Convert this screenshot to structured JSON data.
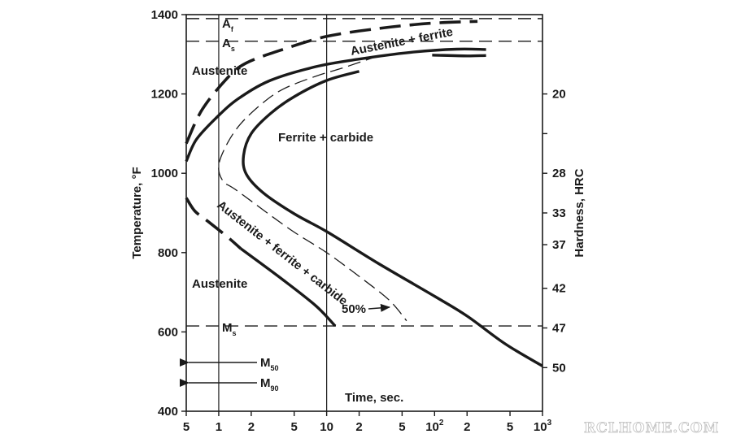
{
  "chart_data": {
    "type": "line",
    "title": "",
    "x_axis": {
      "label": "Time, sec.",
      "scale": "log",
      "range": [
        0.5,
        1000
      ],
      "ticks": [
        {
          "value": 0.5,
          "label": "5"
        },
        {
          "value": 1,
          "label": "1"
        },
        {
          "value": 2,
          "label": "2"
        },
        {
          "value": 5,
          "label": "5"
        },
        {
          "value": 10,
          "label": "10"
        },
        {
          "value": 20,
          "label": "2"
        },
        {
          "value": 50,
          "label": "5"
        },
        {
          "value": 100,
          "label": "10",
          "sup": "2"
        },
        {
          "value": 200,
          "label": "2"
        },
        {
          "value": 500,
          "label": "5"
        },
        {
          "value": 1000,
          "label": "10",
          "sup": "3"
        }
      ]
    },
    "y_axis": {
      "label": "Temperature, °F",
      "range": [
        400,
        1400
      ],
      "ticks": [
        400,
        600,
        800,
        1000,
        1200,
        1400
      ]
    },
    "y2_axis": {
      "label": "Hardness, HRC",
      "ticks": [
        {
          "temp": 1200,
          "label": "20"
        },
        {
          "temp": 1100,
          "label": ""
        },
        {
          "temp": 1000,
          "label": "28"
        },
        {
          "temp": 900,
          "label": "33"
        },
        {
          "temp": 820,
          "label": "37"
        },
        {
          "temp": 710,
          "label": "42"
        },
        {
          "temp": 610,
          "label": "47"
        },
        {
          "temp": 510,
          "label": "50"
        }
      ]
    },
    "reference_lines": [
      {
        "name": "Af",
        "main": "A",
        "sub": "f",
        "temp": 1390
      },
      {
        "name": "As",
        "main": "A",
        "sub": "s",
        "temp": 1333
      },
      {
        "name": "Ms",
        "main": "M",
        "sub": "s",
        "temp": 615
      }
    ],
    "vertical_lines": [
      1,
      10
    ],
    "series": [
      {
        "id": "start",
        "style": "dashed-bold",
        "points": [
          [
            0.5,
            1075
          ],
          [
            0.7,
            1160
          ],
          [
            1.2,
            1240
          ],
          [
            1.8,
            1278
          ],
          [
            4,
            1313
          ],
          [
            10,
            1345
          ],
          [
            30,
            1365
          ],
          [
            90,
            1378
          ],
          [
            250,
            1383
          ]
        ]
      },
      {
        "id": "finish-upper",
        "style": "solid-bold",
        "points": [
          [
            0.5,
            1030
          ],
          [
            0.62,
            1085
          ],
          [
            0.95,
            1140
          ],
          [
            1.5,
            1187
          ],
          [
            3,
            1234
          ],
          [
            8,
            1269
          ],
          [
            20,
            1288
          ],
          [
            60,
            1305
          ],
          [
            160,
            1313
          ],
          [
            300,
            1312
          ]
        ]
      },
      {
        "id": "finish-upper-2",
        "style": "solid-bold",
        "points": [
          [
            95,
            1298
          ],
          [
            200,
            1296
          ],
          [
            300,
            1297
          ]
        ]
      },
      {
        "id": "fifty-percent",
        "style": "thin-dashed",
        "points": [
          [
            30,
            1296
          ],
          [
            15,
            1268
          ],
          [
            8,
            1245
          ],
          [
            4,
            1213
          ],
          [
            2.5,
            1175
          ],
          [
            1.6,
            1125
          ],
          [
            1.2,
            1075
          ],
          [
            1,
            1020
          ],
          [
            1.1,
            980
          ],
          [
            1.5,
            955
          ],
          [
            4.5,
            860
          ],
          [
            10,
            800
          ],
          [
            20,
            740
          ],
          [
            38,
            680
          ],
          [
            55,
            628
          ]
        ]
      },
      {
        "id": "finish-nose",
        "style": "solid-bold",
        "points": [
          [
            20,
            1257
          ],
          [
            10,
            1234
          ],
          [
            5,
            1193
          ],
          [
            3,
            1150
          ],
          [
            2,
            1100
          ],
          [
            1.7,
            1045
          ],
          [
            1.8,
            998
          ],
          [
            2.6,
            950
          ],
          [
            5,
            898
          ],
          [
            10,
            853
          ],
          [
            30,
            773
          ],
          [
            100,
            690
          ],
          [
            200,
            640
          ],
          [
            450,
            570
          ],
          [
            1000,
            514
          ]
        ]
      },
      {
        "id": "start-lower",
        "style": "dashed-bold",
        "points": [
          [
            0.5,
            938
          ],
          [
            0.6,
            905
          ],
          [
            0.8,
            878
          ],
          [
            1.2,
            840
          ],
          [
            1.6,
            810
          ]
        ]
      },
      {
        "id": "finish-lower",
        "style": "solid-bold",
        "points": [
          [
            1.6,
            810
          ],
          [
            4,
            730
          ],
          [
            8,
            665
          ],
          [
            12,
            615
          ]
        ]
      }
    ],
    "arrows": [
      {
        "label": "M",
        "sub": "50",
        "temp": 525
      },
      {
        "label": "M",
        "sub": "90",
        "temp": 474
      }
    ],
    "region_labels": [
      {
        "text": "Austenite",
        "location": "upper-left"
      },
      {
        "text": "Austenite",
        "location": "lower-left"
      },
      {
        "text": "Ferrite + carbide",
        "location": "center"
      },
      {
        "text": "Austenite + ferrite",
        "location": "top-band"
      },
      {
        "text": "Austenite + ferrite + carbide",
        "location": "diagonal"
      },
      {
        "text": "50%",
        "location": "lower-right"
      }
    ]
  },
  "watermark": "RCLHOME.COM"
}
